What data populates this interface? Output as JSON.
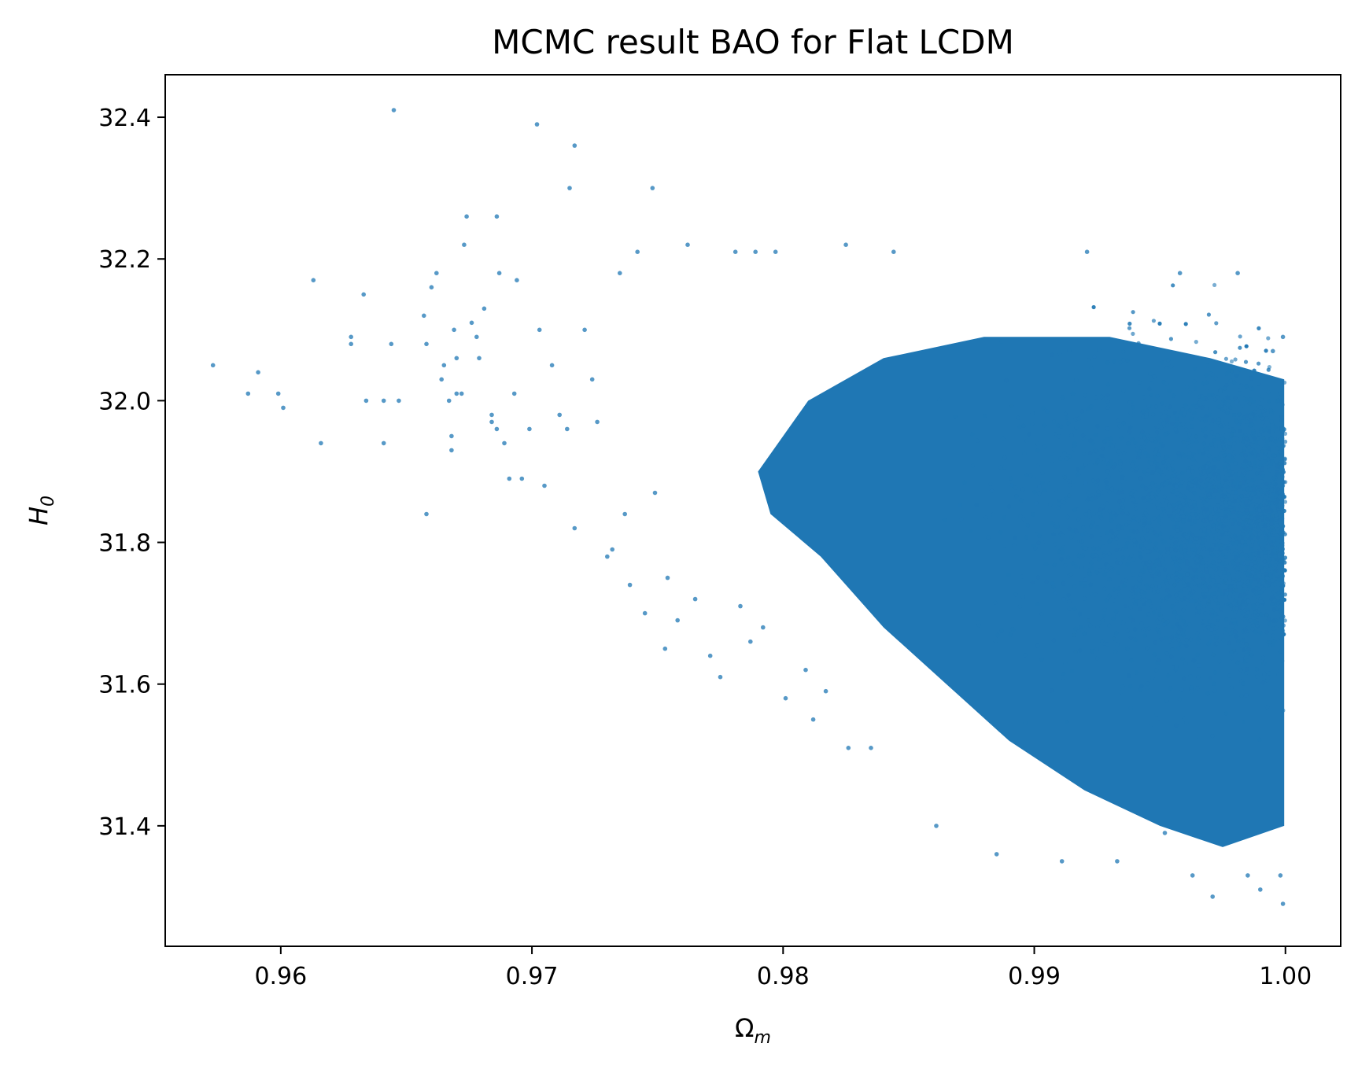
{
  "colors": {
    "marker": "#1f77b4",
    "axes": "#000000",
    "background": "#ffffff"
  },
  "chart_data": {
    "type": "scatter",
    "title": "MCMC result BAO for Flat LCDM",
    "xlabel": {
      "base": "Ω",
      "subscript": "m"
    },
    "ylabel": {
      "base": "H",
      "subscript": "0"
    },
    "xlim": [
      0.9554,
      1.0022
    ],
    "ylim": [
      31.23,
      32.46
    ],
    "xticks": [
      "0.96",
      "0.97",
      "0.98",
      "0.99",
      "1.00"
    ],
    "xtick_values": [
      0.96,
      0.97,
      0.98,
      0.99,
      1.0
    ],
    "yticks": [
      "31.4",
      "31.6",
      "31.8",
      "32.0",
      "32.2",
      "32.4"
    ],
    "ytick_values": [
      31.4,
      31.6,
      31.8,
      32.0,
      32.2,
      32.4
    ],
    "grid": false,
    "legend": "none",
    "series": [
      {
        "points": [
          [
            0.9573,
            32.05
          ],
          [
            0.9587,
            32.01
          ],
          [
            0.9591,
            32.04
          ],
          [
            0.9599,
            32.01
          ],
          [
            0.9601,
            31.99
          ],
          [
            0.9613,
            32.17
          ],
          [
            0.9616,
            31.94
          ],
          [
            0.9628,
            32.09
          ],
          [
            0.9628,
            32.08
          ],
          [
            0.9633,
            32.15
          ],
          [
            0.9634,
            32.0
          ],
          [
            0.9641,
            32.0
          ],
          [
            0.9641,
            31.94
          ],
          [
            0.9645,
            32.41
          ],
          [
            0.9644,
            32.08
          ],
          [
            0.9647,
            32.0
          ],
          [
            0.9658,
            31.84
          ],
          [
            0.9657,
            32.12
          ],
          [
            0.9658,
            32.08
          ],
          [
            0.966,
            32.16
          ],
          [
            0.9662,
            32.18
          ],
          [
            0.9665,
            32.05
          ],
          [
            0.9664,
            32.03
          ],
          [
            0.9667,
            32.0
          ],
          [
            0.9668,
            31.95
          ],
          [
            0.9668,
            31.93
          ],
          [
            0.9669,
            32.1
          ],
          [
            0.967,
            32.06
          ],
          [
            0.967,
            32.01
          ],
          [
            0.9672,
            32.01
          ],
          [
            0.9673,
            32.22
          ],
          [
            0.9674,
            32.26
          ],
          [
            0.9676,
            32.11
          ],
          [
            0.9678,
            32.09
          ],
          [
            0.9679,
            32.06
          ],
          [
            0.9681,
            32.13
          ],
          [
            0.9684,
            31.97
          ],
          [
            0.9684,
            31.98
          ],
          [
            0.9686,
            31.96
          ],
          [
            0.9686,
            32.26
          ],
          [
            0.9687,
            32.18
          ],
          [
            0.9689,
            31.94
          ],
          [
            0.9691,
            31.89
          ],
          [
            0.9693,
            32.01
          ],
          [
            0.9694,
            32.17
          ],
          [
            0.9696,
            31.89
          ],
          [
            0.9699,
            31.96
          ],
          [
            0.9702,
            32.39
          ],
          [
            0.9703,
            32.1
          ],
          [
            0.9705,
            31.88
          ],
          [
            0.9708,
            32.05
          ],
          [
            0.9711,
            31.98
          ],
          [
            0.9714,
            31.96
          ],
          [
            0.9715,
            32.3
          ],
          [
            0.9717,
            32.36
          ],
          [
            0.9717,
            31.82
          ],
          [
            0.9721,
            32.1
          ],
          [
            0.9724,
            32.03
          ],
          [
            0.9726,
            31.97
          ],
          [
            0.973,
            31.78
          ],
          [
            0.9732,
            31.79
          ],
          [
            0.9735,
            32.18
          ],
          [
            0.9737,
            31.84
          ],
          [
            0.9739,
            31.74
          ],
          [
            0.9742,
            32.21
          ],
          [
            0.9745,
            31.7
          ],
          [
            0.9748,
            32.3
          ],
          [
            0.9749,
            31.87
          ],
          [
            0.9753,
            31.65
          ],
          [
            0.9754,
            31.75
          ],
          [
            0.9758,
            31.69
          ],
          [
            0.9762,
            32.22
          ],
          [
            0.9765,
            31.72
          ],
          [
            0.9771,
            31.64
          ],
          [
            0.9775,
            31.61
          ],
          [
            0.9781,
            32.21
          ],
          [
            0.9783,
            31.71
          ],
          [
            0.9787,
            31.66
          ],
          [
            0.9789,
            32.21
          ],
          [
            0.9792,
            31.68
          ],
          [
            0.9797,
            32.21
          ],
          [
            0.9801,
            31.58
          ],
          [
            0.9809,
            31.62
          ],
          [
            0.9812,
            31.55
          ],
          [
            0.9817,
            31.59
          ],
          [
            0.9825,
            32.22
          ],
          [
            0.9826,
            31.51
          ],
          [
            0.9835,
            31.51
          ],
          [
            0.9844,
            32.21
          ],
          [
            0.9861,
            31.4
          ],
          [
            0.9885,
            31.36
          ],
          [
            0.9911,
            31.35
          ],
          [
            0.9921,
            32.21
          ],
          [
            0.9933,
            31.35
          ],
          [
            0.9952,
            31.39
          ],
          [
            0.9958,
            32.18
          ],
          [
            0.9963,
            31.33
          ],
          [
            0.9971,
            31.3
          ],
          [
            0.9981,
            32.18
          ],
          [
            0.9985,
            31.33
          ],
          [
            0.999,
            31.31
          ],
          [
            0.9995,
            32.07
          ],
          [
            0.9999,
            31.29
          ],
          [
            0.9999,
            32.09
          ],
          [
            0.9998,
            31.33
          ]
        ]
      }
    ]
  }
}
